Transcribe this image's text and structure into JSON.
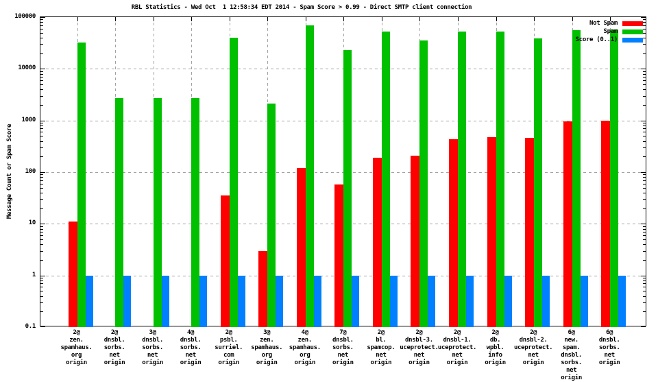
{
  "title": "RBL Statistics - Wed Oct  1 12:58:34 EDT 2014 - Spam Score > 0.99 - Direct SMTP client connection",
  "y_axis_label": "Message Count or Spam Score",
  "legend": [
    {
      "label": "Not Spam",
      "color": "#ff0000"
    },
    {
      "label": "Spam",
      "color": "#00c000"
    },
    {
      "label": "Score (0..1)",
      "color": "#0080ff"
    }
  ],
  "colors": {
    "not_spam": "#ff0000",
    "spam": "#00c000",
    "score": "#0080ff",
    "grid": "#a2a2a2",
    "axis": "#000000",
    "background": "#ffffff"
  },
  "chart_data": {
    "type": "bar",
    "scale": "log",
    "title": "RBL Statistics - Wed Oct  1 12:58:34 EDT 2014 - Spam Score > 0.99 - Direct SMTP client connection",
    "xlabel": "",
    "ylabel": "Message Count or Spam Score",
    "ylim": [
      0.1,
      100000
    ],
    "y_tick_labels": [
      "100000",
      "10000",
      "1000",
      "100",
      "10",
      "1",
      "0.1"
    ],
    "grid": true,
    "legend_position": "top-right",
    "categories": [
      [
        "2@",
        "zen.",
        "spamhaus.",
        "org",
        "origin"
      ],
      [
        "2@",
        "dnsbl.",
        "sorbs.",
        "net",
        "origin"
      ],
      [
        "3@",
        "dnsbl.",
        "sorbs.",
        "net",
        "origin"
      ],
      [
        "4@",
        "dnsbl.",
        "sorbs.",
        "net",
        "origin"
      ],
      [
        "2@",
        "psbl.",
        "surriel.",
        "com",
        "origin"
      ],
      [
        "3@",
        "zen.",
        "spamhaus.",
        "org",
        "origin"
      ],
      [
        "4@",
        "zen.",
        "spamhaus.",
        "org",
        "origin"
      ],
      [
        "7@",
        "dnsbl.",
        "sorbs.",
        "net",
        "origin"
      ],
      [
        "2@",
        "bl.",
        "spamcop.",
        "net",
        "origin"
      ],
      [
        "2@",
        "dnsbl-3.",
        "uceprotect.",
        "net",
        "origin"
      ],
      [
        "2@",
        "dnsbl-1.",
        "uceprotect.",
        "net",
        "origin"
      ],
      [
        "2@",
        "db.",
        "wpbl.",
        "info",
        "origin"
      ],
      [
        "2@",
        "dnsbl-2.",
        "uceprotect.",
        "net",
        "origin"
      ],
      [
        "6@",
        "new.",
        "spam.",
        "dnsbl.",
        "sorbs.",
        "net",
        "origin"
      ],
      [
        "6@",
        "dnsbl.",
        "sorbs.",
        "net",
        "origin"
      ]
    ],
    "series": [
      {
        "name": "Not Spam",
        "color": "#ff0000",
        "values": [
          11,
          0,
          0,
          0,
          35,
          3,
          120,
          58,
          190,
          210,
          440,
          470,
          460,
          950,
          1000
        ]
      },
      {
        "name": "Spam",
        "color": "#00c000",
        "values": [
          32000,
          2700,
          2700,
          2700,
          40000,
          2100,
          70000,
          23000,
          53000,
          35000,
          53000,
          52000,
          39000,
          56000,
          58000
        ]
      },
      {
        "name": "Score (0..1)",
        "color": "#0080ff",
        "values": [
          1,
          1,
          1,
          1,
          1,
          1,
          1,
          1,
          1,
          1,
          1,
          1,
          1,
          1,
          1
        ]
      }
    ]
  }
}
